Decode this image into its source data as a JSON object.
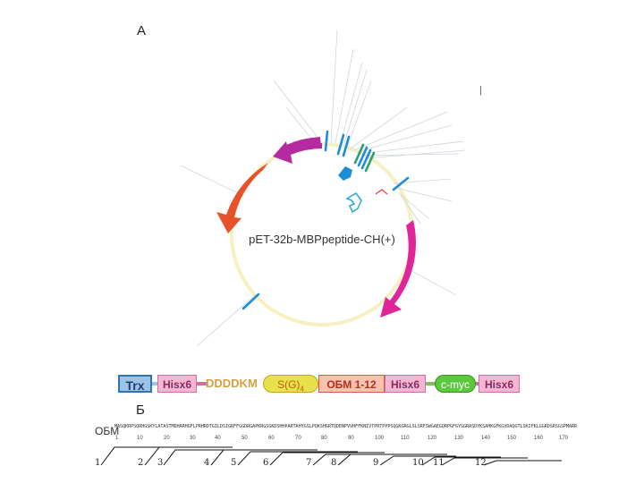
{
  "panel_labels": {
    "a": "А",
    "b": "Б"
  },
  "plasmid": {
    "name": "pET-32b-MBPpeptide-CH(+)",
    "marker": "|"
  },
  "construct": {
    "trx": "Trx",
    "hisx6_1": "Hisx6",
    "linker": "DDDDKM",
    "sg4_main": "S(G)",
    "sg4_sub": "4",
    "obm": "ОБМ 1-12",
    "hisx6_2": "Hisx6",
    "cmyc": "c-myc",
    "hisx6_3": "Hisx6",
    "colors": {
      "trx_fill": "#9dc3e6",
      "his_fill": "#f4b6d2",
      "sg_fill": "#e8e24a",
      "obm_fill": "#f8c1b0",
      "cmyc_fill": "#5dc83c",
      "linker_text": "#d6a040"
    }
  },
  "sequence": {
    "label": "ОБМ",
    "text": "MASQKRPSQRHGSKYLATASTMDHARHGFLPRHRDTGILDSIGRFFGGDRGAPKRGSGKDSHHPARTAHYGSLPQKSHGRTQDENPVVHFFKNIVTPRTPPPSQGKGRGLSLSRFSWGAEGQRPGFGYGGRASDYKSAHKGFKGVDAQGTLSKIFKLGGRDSRSGSPMARR",
    "ticks": [
      "1",
      "10",
      "20",
      "30",
      "40",
      "50",
      "60",
      "70",
      "80",
      "90",
      "100",
      "110",
      "120",
      "130",
      "140",
      "150",
      "160",
      "170"
    ],
    "fragments": [
      "1",
      "2",
      "3",
      "4",
      "5",
      "6",
      "7",
      "8",
      "9",
      "10",
      "11",
      "12"
    ]
  }
}
